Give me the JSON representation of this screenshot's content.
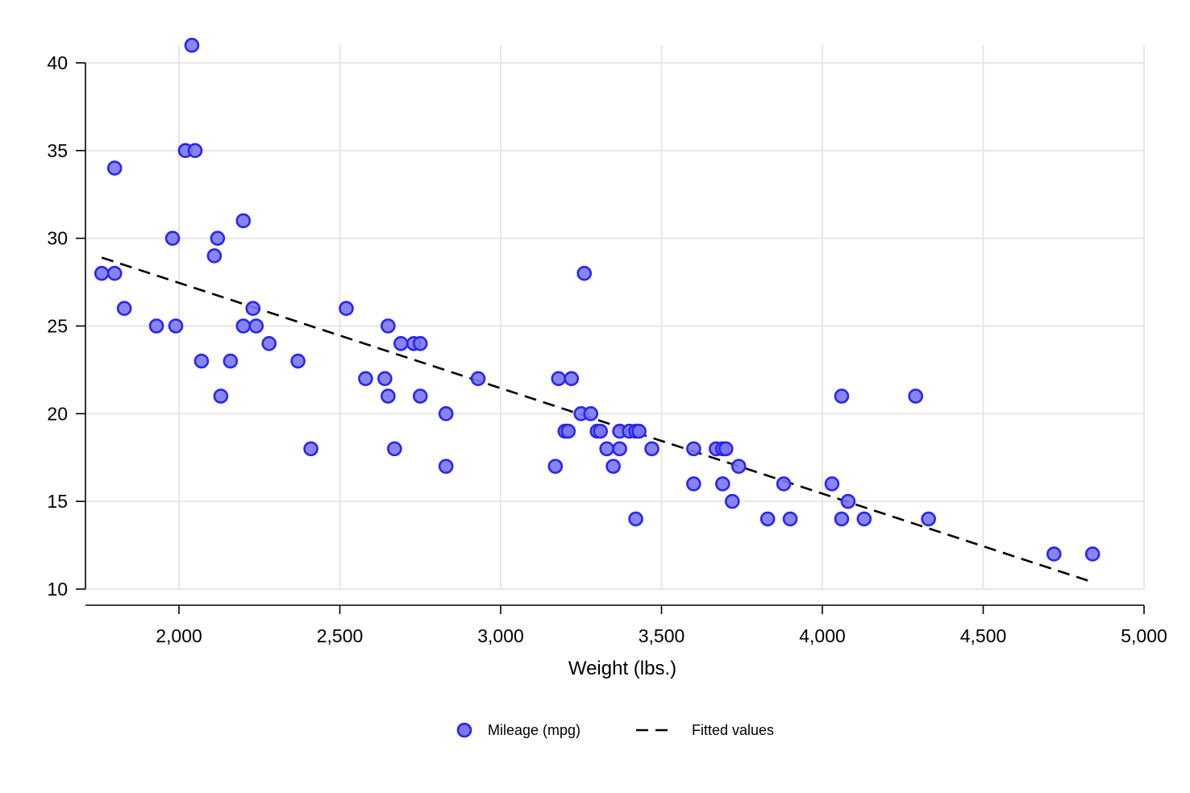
{
  "chart_data": {
    "type": "scatter",
    "xlabel": "Weight (lbs.)",
    "ylabel": "",
    "xlim": [
      1760,
      5000
    ],
    "ylim": [
      10,
      40
    ],
    "x_ticks": [
      2000,
      2500,
      3000,
      3500,
      4000,
      4500,
      5000
    ],
    "x_tick_labels": [
      "2,000",
      "2,500",
      "3,000",
      "3,500",
      "4,000",
      "4,500",
      "5,000"
    ],
    "y_ticks": [
      10,
      15,
      20,
      25,
      30,
      35,
      40
    ],
    "y_tick_labels": [
      "10",
      "15",
      "20",
      "25",
      "30",
      "35",
      "40"
    ],
    "grid": true,
    "legend_position": "bottom",
    "colors": {
      "point_fill": "#7a78ee",
      "point_stroke": "#2a25ee",
      "fit_line": "#000000",
      "grid": "#e6e6e6"
    },
    "series": [
      {
        "name": "Mileage (mpg)",
        "kind": "scatter",
        "points": [
          [
            1760,
            28
          ],
          [
            1800,
            34
          ],
          [
            1800,
            28
          ],
          [
            1830,
            26
          ],
          [
            1930,
            25
          ],
          [
            1980,
            30
          ],
          [
            1990,
            25
          ],
          [
            2020,
            35
          ],
          [
            2040,
            41
          ],
          [
            2050,
            35
          ],
          [
            2070,
            23
          ],
          [
            2110,
            29
          ],
          [
            2120,
            30
          ],
          [
            2130,
            21
          ],
          [
            2160,
            23
          ],
          [
            2200,
            31
          ],
          [
            2200,
            25
          ],
          [
            2230,
            26
          ],
          [
            2240,
            25
          ],
          [
            2280,
            24
          ],
          [
            2370,
            23
          ],
          [
            2410,
            18
          ],
          [
            2520,
            26
          ],
          [
            2580,
            22
          ],
          [
            2640,
            22
          ],
          [
            2650,
            25
          ],
          [
            2650,
            21
          ],
          [
            2670,
            18
          ],
          [
            2690,
            24
          ],
          [
            2730,
            24
          ],
          [
            2750,
            24
          ],
          [
            2750,
            21
          ],
          [
            2830,
            20
          ],
          [
            2830,
            17
          ],
          [
            2930,
            22
          ],
          [
            3170,
            17
          ],
          [
            3180,
            22
          ],
          [
            3200,
            19
          ],
          [
            3210,
            19
          ],
          [
            3220,
            22
          ],
          [
            3250,
            20
          ],
          [
            3260,
            28
          ],
          [
            3280,
            20
          ],
          [
            3300,
            19
          ],
          [
            3310,
            19
          ],
          [
            3330,
            18
          ],
          [
            3350,
            17
          ],
          [
            3370,
            19
          ],
          [
            3370,
            18
          ],
          [
            3400,
            19
          ],
          [
            3420,
            19
          ],
          [
            3420,
            14
          ],
          [
            3430,
            19
          ],
          [
            3470,
            18
          ],
          [
            3600,
            18
          ],
          [
            3600,
            16
          ],
          [
            3670,
            18
          ],
          [
            3690,
            18
          ],
          [
            3690,
            16
          ],
          [
            3700,
            18
          ],
          [
            3720,
            15
          ],
          [
            3740,
            17
          ],
          [
            3830,
            14
          ],
          [
            3880,
            16
          ],
          [
            3900,
            14
          ],
          [
            4030,
            16
          ],
          [
            4060,
            21
          ],
          [
            4060,
            14
          ],
          [
            4080,
            15
          ],
          [
            4130,
            14
          ],
          [
            4290,
            21
          ],
          [
            4330,
            14
          ],
          [
            4720,
            12
          ],
          [
            4840,
            12
          ]
        ]
      },
      {
        "name": "Fitted values",
        "kind": "line",
        "points": [
          [
            1760,
            28.9
          ],
          [
            4840,
            10.4
          ]
        ]
      }
    ]
  }
}
